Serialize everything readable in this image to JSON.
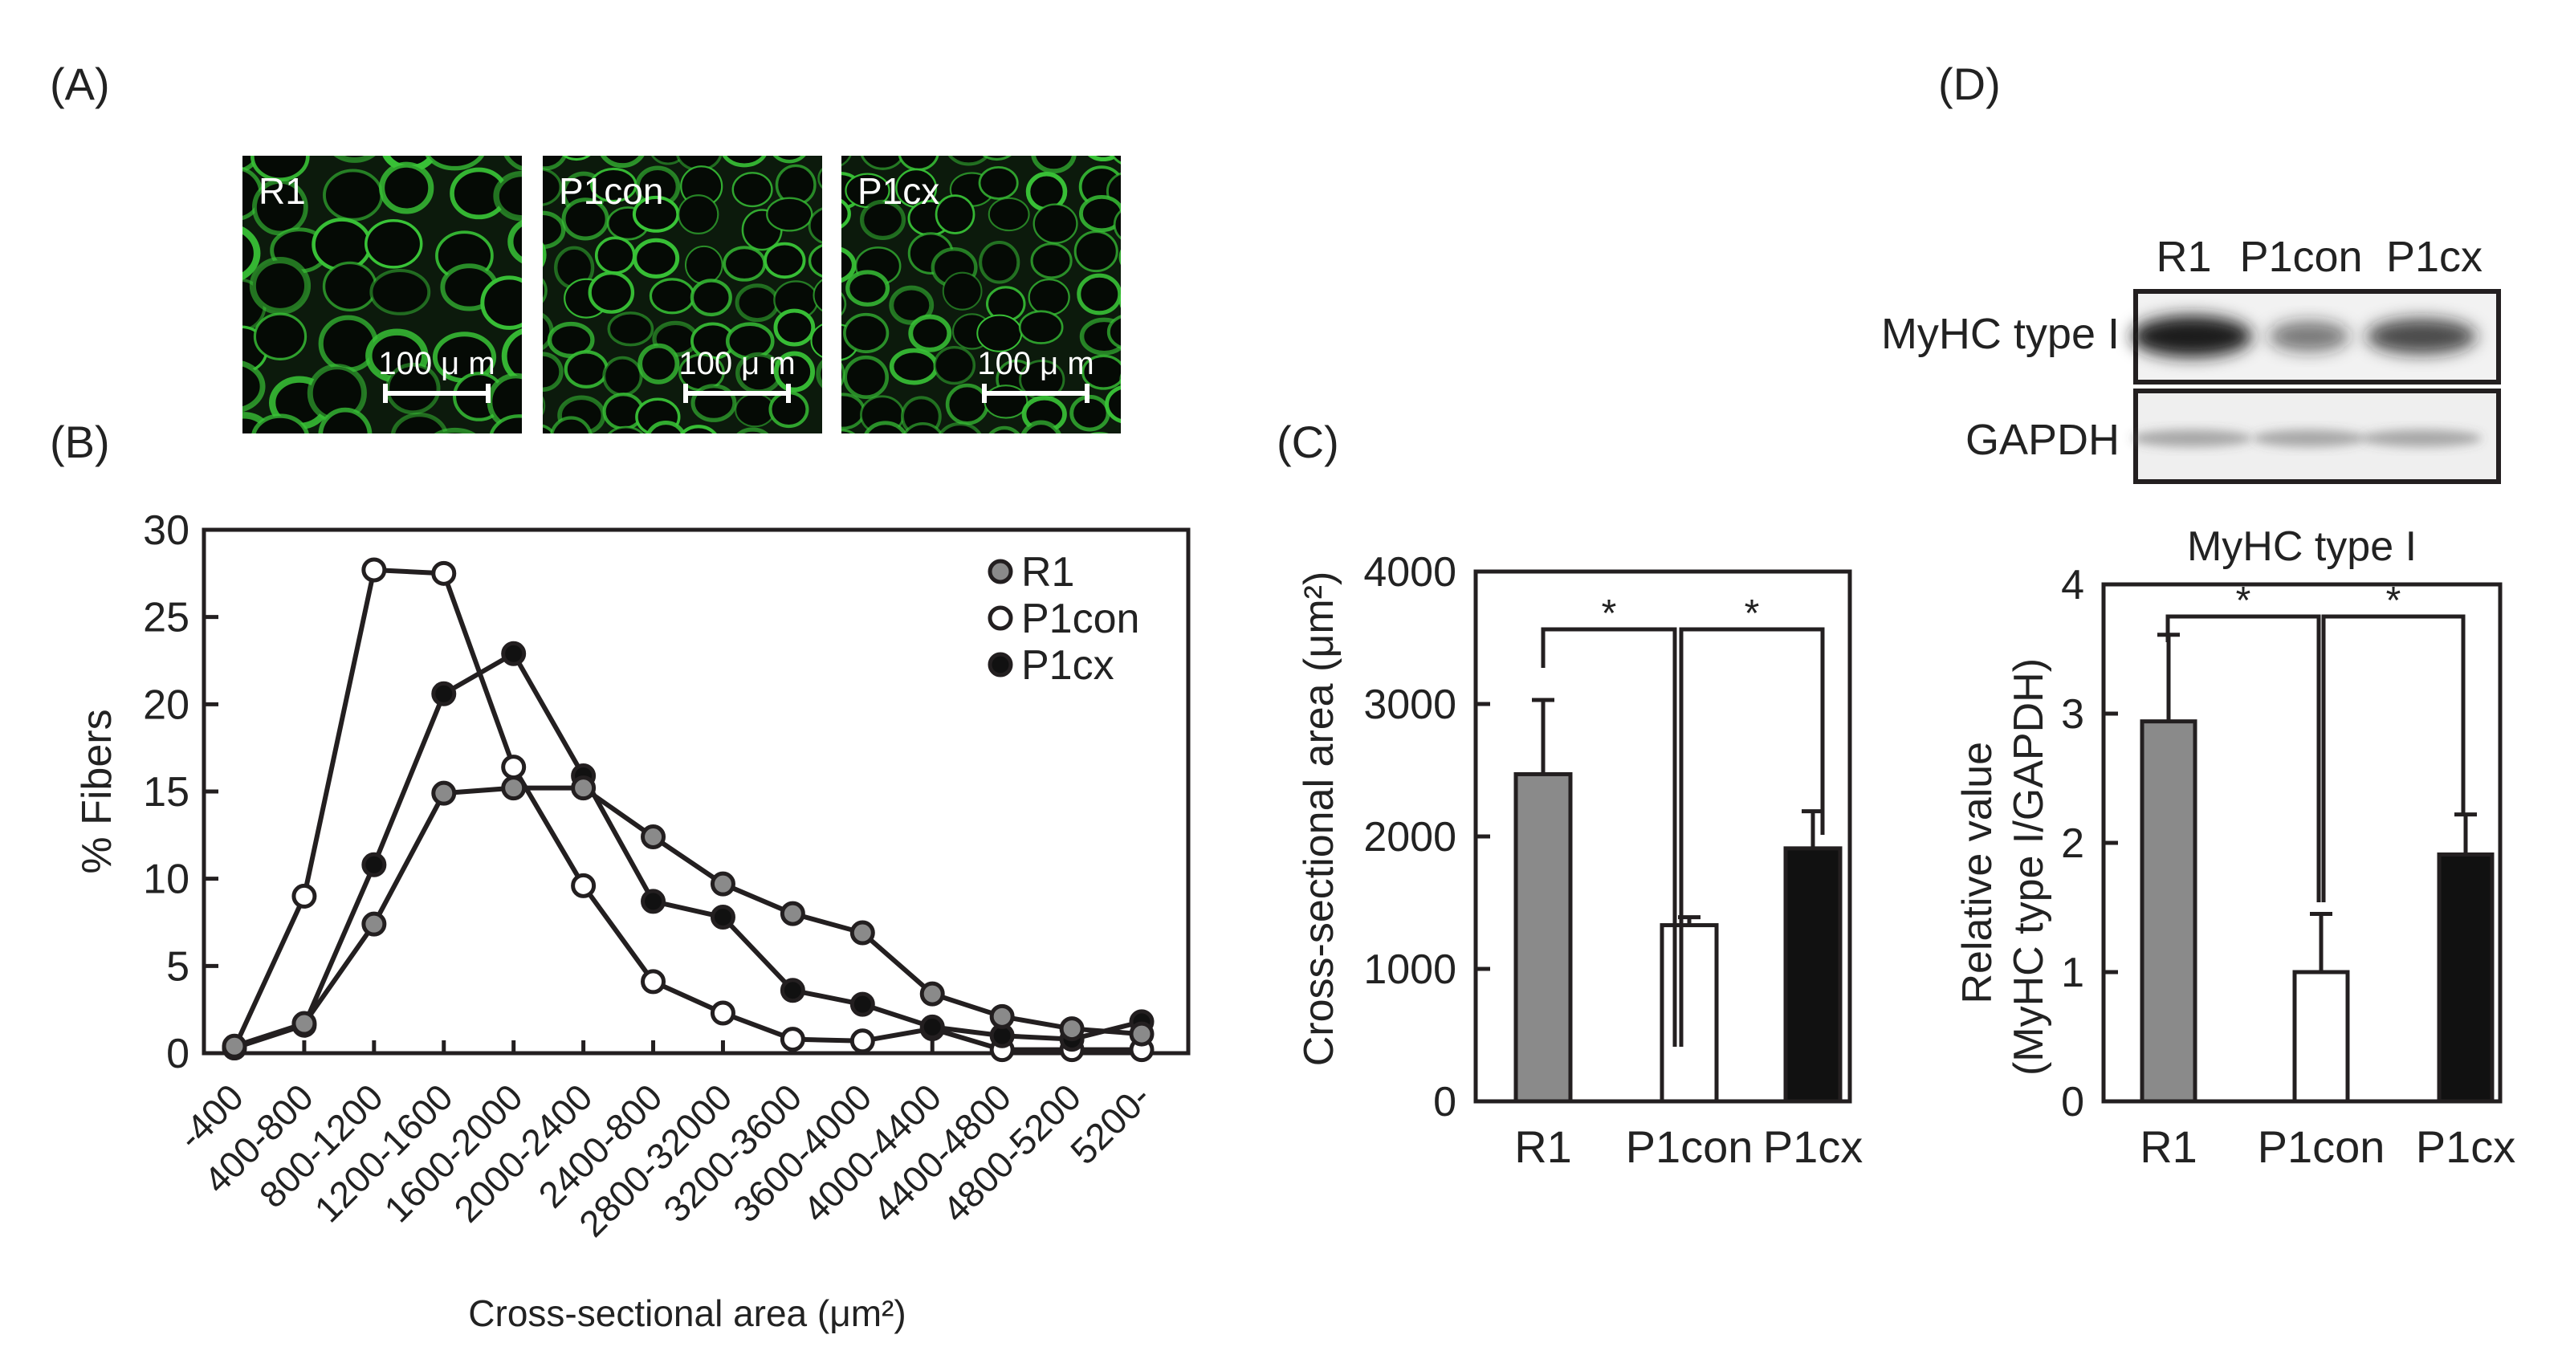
{
  "panels": {
    "a": "(A)",
    "b": "(B)",
    "c": "(C)",
    "d": "(D)"
  },
  "micrographs": [
    {
      "label": "R1",
      "scalebar": "100 μ m"
    },
    {
      "label": "P1con",
      "scalebar": "100 μ m"
    },
    {
      "label": "P1cx",
      "scalebar": "100 μ m"
    }
  ],
  "colors": {
    "R1": "#8a8a8a",
    "P1con": "#ffffff",
    "P1cx": "#111111",
    "fiber": "#39c437",
    "bg_dark": "#0c1a0c"
  },
  "chart_data": [
    {
      "type": "line",
      "panel": "B",
      "ylabel": "% Fibers",
      "xlabel": "Cross-sectional area (μm²)",
      "ylim": [
        0,
        30
      ],
      "yticks": [
        0,
        5,
        10,
        15,
        20,
        25,
        30
      ],
      "categories": [
        "-400",
        "400-800",
        "800-1200",
        "1200-1600",
        "1600-2000",
        "2000-2400",
        "2400-800",
        "2800-32000",
        "3200-3600",
        "3600-4000",
        "4000-4400",
        "4400-4800",
        "4800-5200",
        "5200-"
      ],
      "legend": [
        "R1",
        "P1con",
        "P1cx"
      ],
      "series": [
        {
          "name": "P1con",
          "values": [
            0.3,
            9.0,
            27.7,
            27.5,
            16.4,
            9.6,
            4.1,
            2.3,
            0.8,
            0.7,
            1.4,
            0.2,
            0.2,
            0.2
          ]
        },
        {
          "name": "P1cx",
          "values": [
            0.3,
            1.6,
            10.8,
            20.6,
            22.9,
            15.9,
            8.7,
            7.8,
            3.6,
            2.8,
            1.5,
            1.0,
            0.8,
            1.8
          ]
        },
        {
          "name": "R1",
          "values": [
            0.4,
            1.7,
            7.4,
            14.9,
            15.2,
            15.2,
            12.4,
            9.7,
            8.0,
            6.9,
            3.4,
            2.1,
            1.4,
            1.1
          ]
        }
      ]
    },
    {
      "type": "bar",
      "panel": "C",
      "ylabel": "Cross-sectional area (μm²)",
      "ylim": [
        0,
        4000
      ],
      "yticks": [
        0,
        1000,
        2000,
        3000,
        4000
      ],
      "categories": [
        "R1",
        "P1con",
        "P1cx"
      ],
      "values": [
        2470,
        1330,
        1910
      ],
      "errors": [
        560,
        60,
        280
      ],
      "significance": [
        "*",
        "*"
      ]
    },
    {
      "type": "bar",
      "panel": "D",
      "title": "MyHC type I",
      "ylabel": "Relative value (MyHC type I/GAPDH)",
      "ylim": [
        0,
        4
      ],
      "yticks": [
        0,
        1,
        2,
        3,
        4
      ],
      "categories": [
        "R1",
        "P1con",
        "P1cx"
      ],
      "values": [
        2.94,
        1.0,
        1.91
      ],
      "errors": [
        0.67,
        0.45,
        0.31
      ],
      "significance": [
        "*",
        "*"
      ]
    }
  ],
  "blot": {
    "lanes": [
      "R1",
      "P1con",
      "P1cx"
    ],
    "rows": [
      "MyHC type I",
      "GAPDH"
    ]
  }
}
